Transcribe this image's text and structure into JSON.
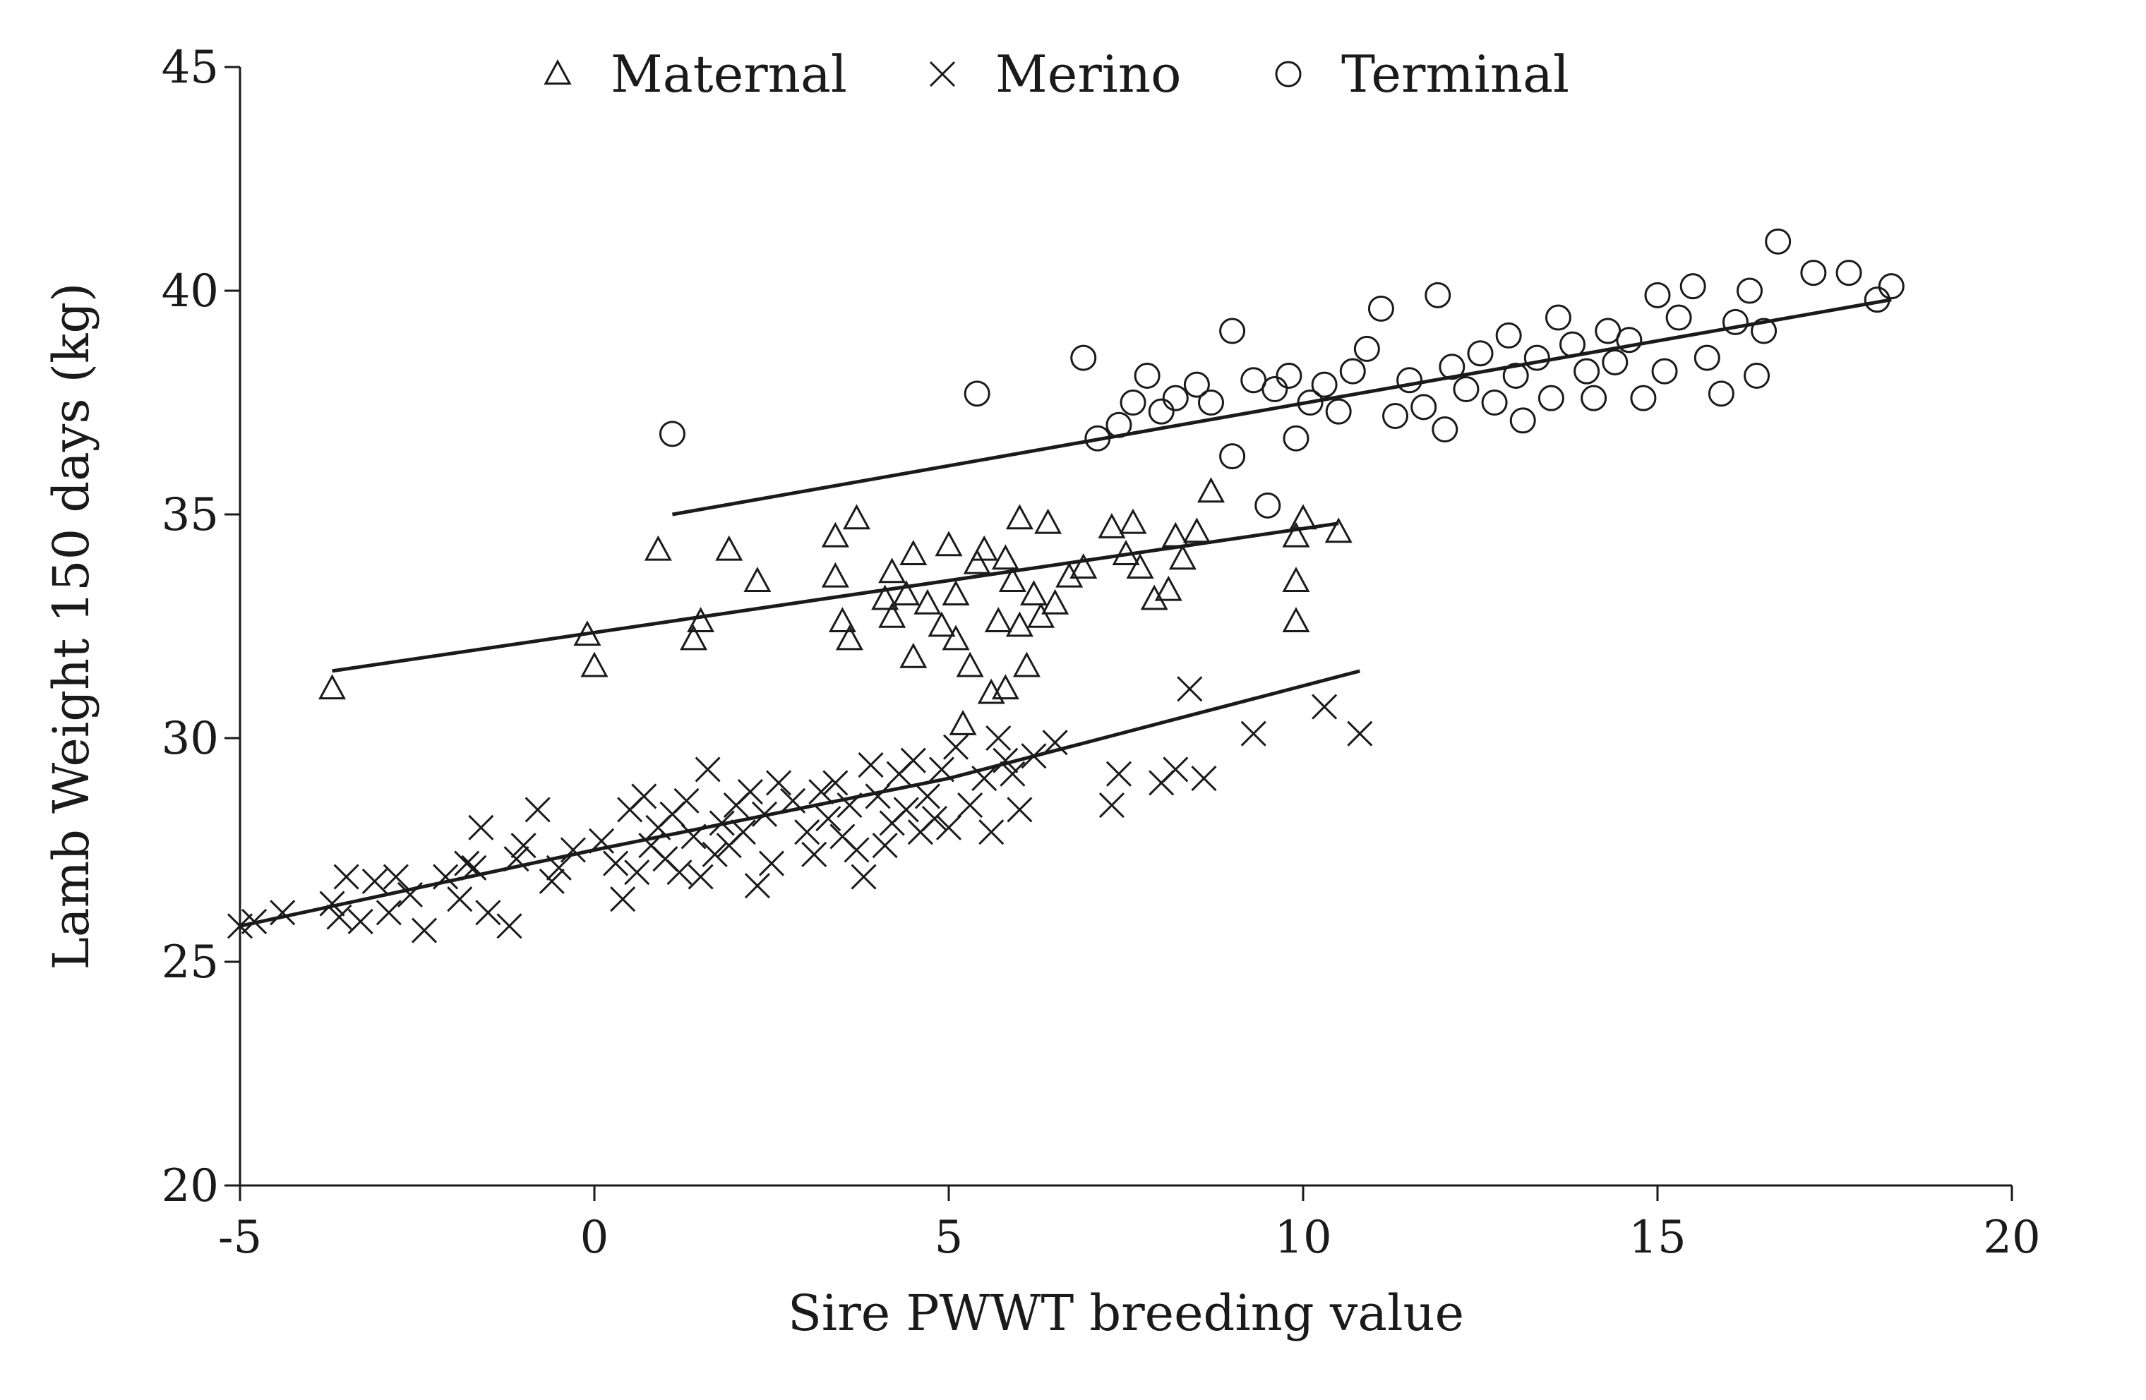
{
  "chart_data": {
    "type": "scatter",
    "xlabel": "Sire PWWT breeding value",
    "ylabel": "Lamb Weight 150 days (kg)",
    "xlim": [
      -5,
      20
    ],
    "ylim": [
      20,
      45
    ],
    "xticks": [
      -5,
      0,
      5,
      10,
      15,
      20
    ],
    "yticks": [
      20,
      25,
      30,
      35,
      40,
      45
    ],
    "grid": false,
    "legend_position": "top",
    "series": [
      {
        "name": "Maternal",
        "marker": "triangle",
        "trend": [
          [
            -3.7,
            31.5
          ],
          [
            10.5,
            34.8
          ]
        ],
        "points": [
          [
            -3.7,
            31.1
          ],
          [
            -0.1,
            32.3
          ],
          [
            0.0,
            31.6
          ],
          [
            0.9,
            34.2
          ],
          [
            1.4,
            32.2
          ],
          [
            1.5,
            32.6
          ],
          [
            1.9,
            34.2
          ],
          [
            2.3,
            33.5
          ],
          [
            3.4,
            34.5
          ],
          [
            3.4,
            33.6
          ],
          [
            3.5,
            32.6
          ],
          [
            3.6,
            32.2
          ],
          [
            3.7,
            34.9
          ],
          [
            4.1,
            33.1
          ],
          [
            4.2,
            33.7
          ],
          [
            4.2,
            32.7
          ],
          [
            4.4,
            33.2
          ],
          [
            4.5,
            34.1
          ],
          [
            4.5,
            31.8
          ],
          [
            4.7,
            33.0
          ],
          [
            4.9,
            32.5
          ],
          [
            5.0,
            34.3
          ],
          [
            5.1,
            33.2
          ],
          [
            5.1,
            32.2
          ],
          [
            5.2,
            30.3
          ],
          [
            5.3,
            31.6
          ],
          [
            5.4,
            33.9
          ],
          [
            5.5,
            34.2
          ],
          [
            5.6,
            31.0
          ],
          [
            5.7,
            32.6
          ],
          [
            5.8,
            34.0
          ],
          [
            5.8,
            31.1
          ],
          [
            5.9,
            33.5
          ],
          [
            6.0,
            32.5
          ],
          [
            6.0,
            34.9
          ],
          [
            6.1,
            31.6
          ],
          [
            6.2,
            33.2
          ],
          [
            6.3,
            32.7
          ],
          [
            6.4,
            34.8
          ],
          [
            6.5,
            33.0
          ],
          [
            6.7,
            33.6
          ],
          [
            6.9,
            33.8
          ],
          [
            7.3,
            34.7
          ],
          [
            7.5,
            34.1
          ],
          [
            7.6,
            34.8
          ],
          [
            7.7,
            33.8
          ],
          [
            7.9,
            33.1
          ],
          [
            8.1,
            33.3
          ],
          [
            8.2,
            34.5
          ],
          [
            8.3,
            34.0
          ],
          [
            8.5,
            34.6
          ],
          [
            8.7,
            35.5
          ],
          [
            9.9,
            32.6
          ],
          [
            9.9,
            33.5
          ],
          [
            9.9,
            34.5
          ],
          [
            10.0,
            34.9
          ],
          [
            10.5,
            34.6
          ]
        ]
      },
      {
        "name": "Merino",
        "marker": "cross",
        "trend": [
          [
            -5.0,
            25.8
          ],
          [
            0.0,
            27.5
          ],
          [
            5.0,
            29.1
          ],
          [
            10.8,
            31.5
          ]
        ],
        "points": [
          [
            -5.0,
            25.8
          ],
          [
            -4.8,
            25.9
          ],
          [
            -4.4,
            26.1
          ],
          [
            -3.7,
            26.3
          ],
          [
            -3.6,
            26.0
          ],
          [
            -3.5,
            26.9
          ],
          [
            -3.3,
            25.9
          ],
          [
            -3.1,
            26.8
          ],
          [
            -2.9,
            26.1
          ],
          [
            -2.8,
            26.9
          ],
          [
            -2.6,
            26.5
          ],
          [
            -2.4,
            25.7
          ],
          [
            -2.1,
            26.9
          ],
          [
            -1.9,
            26.4
          ],
          [
            -1.8,
            27.2
          ],
          [
            -1.7,
            27.1
          ],
          [
            -1.6,
            28.0
          ],
          [
            -1.5,
            26.1
          ],
          [
            -1.2,
            25.8
          ],
          [
            -1.1,
            27.3
          ],
          [
            -1.0,
            27.6
          ],
          [
            -0.8,
            28.4
          ],
          [
            -0.6,
            26.8
          ],
          [
            -0.5,
            27.1
          ],
          [
            -0.3,
            27.5
          ],
          [
            0.1,
            27.7
          ],
          [
            0.3,
            27.2
          ],
          [
            0.4,
            26.4
          ],
          [
            0.5,
            28.4
          ],
          [
            0.6,
            27.0
          ],
          [
            0.7,
            28.7
          ],
          [
            0.8,
            27.6
          ],
          [
            0.9,
            28.0
          ],
          [
            1.0,
            27.3
          ],
          [
            1.1,
            28.3
          ],
          [
            1.2,
            27.0
          ],
          [
            1.3,
            28.6
          ],
          [
            1.4,
            27.8
          ],
          [
            1.5,
            26.9
          ],
          [
            1.6,
            29.3
          ],
          [
            1.7,
            27.4
          ],
          [
            1.8,
            28.1
          ],
          [
            1.9,
            27.6
          ],
          [
            2.0,
            28.5
          ],
          [
            2.1,
            27.9
          ],
          [
            2.2,
            28.8
          ],
          [
            2.3,
            26.7
          ],
          [
            2.4,
            28.3
          ],
          [
            2.5,
            27.2
          ],
          [
            2.6,
            29.0
          ],
          [
            2.8,
            28.6
          ],
          [
            3.0,
            27.9
          ],
          [
            3.1,
            27.4
          ],
          [
            3.2,
            28.8
          ],
          [
            3.3,
            28.2
          ],
          [
            3.4,
            29.0
          ],
          [
            3.5,
            27.8
          ],
          [
            3.6,
            28.5
          ],
          [
            3.7,
            27.5
          ],
          [
            3.8,
            26.9
          ],
          [
            3.9,
            29.4
          ],
          [
            4.0,
            28.7
          ],
          [
            4.1,
            27.6
          ],
          [
            4.2,
            28.1
          ],
          [
            4.3,
            29.2
          ],
          [
            4.4,
            28.4
          ],
          [
            4.5,
            29.5
          ],
          [
            4.6,
            27.9
          ],
          [
            4.7,
            28.7
          ],
          [
            4.8,
            28.2
          ],
          [
            4.9,
            29.3
          ],
          [
            5.0,
            28.0
          ],
          [
            5.1,
            29.8
          ],
          [
            5.3,
            28.5
          ],
          [
            5.5,
            29.1
          ],
          [
            5.6,
            27.9
          ],
          [
            5.7,
            30.0
          ],
          [
            5.8,
            29.5
          ],
          [
            5.9,
            29.2
          ],
          [
            6.0,
            28.4
          ],
          [
            6.2,
            29.6
          ],
          [
            6.5,
            29.9
          ],
          [
            7.3,
            28.5
          ],
          [
            7.4,
            29.2
          ],
          [
            8.0,
            29.0
          ],
          [
            8.2,
            29.3
          ],
          [
            8.4,
            31.1
          ],
          [
            8.6,
            29.1
          ],
          [
            9.3,
            30.1
          ],
          [
            10.3,
            30.7
          ],
          [
            10.8,
            30.1
          ]
        ]
      },
      {
        "name": "Terminal",
        "marker": "circle",
        "trend": [
          [
            1.1,
            35.0
          ],
          [
            18.3,
            39.8
          ]
        ],
        "points": [
          [
            1.1,
            36.8
          ],
          [
            5.4,
            37.7
          ],
          [
            6.9,
            38.5
          ],
          [
            7.1,
            36.7
          ],
          [
            7.4,
            37.0
          ],
          [
            7.6,
            37.5
          ],
          [
            7.8,
            38.1
          ],
          [
            8.0,
            37.3
          ],
          [
            8.2,
            37.6
          ],
          [
            8.5,
            37.9
          ],
          [
            8.7,
            37.5
          ],
          [
            9.0,
            36.3
          ],
          [
            9.0,
            39.1
          ],
          [
            9.3,
            38.0
          ],
          [
            9.5,
            35.2
          ],
          [
            9.6,
            37.8
          ],
          [
            9.8,
            38.1
          ],
          [
            9.9,
            36.7
          ],
          [
            10.1,
            37.5
          ],
          [
            10.3,
            37.9
          ],
          [
            10.5,
            37.3
          ],
          [
            10.7,
            38.2
          ],
          [
            10.9,
            38.7
          ],
          [
            11.1,
            39.6
          ],
          [
            11.3,
            37.2
          ],
          [
            11.5,
            38.0
          ],
          [
            11.7,
            37.4
          ],
          [
            11.9,
            39.9
          ],
          [
            12.0,
            36.9
          ],
          [
            12.1,
            38.3
          ],
          [
            12.3,
            37.8
          ],
          [
            12.5,
            38.6
          ],
          [
            12.7,
            37.5
          ],
          [
            12.9,
            39.0
          ],
          [
            13.0,
            38.1
          ],
          [
            13.1,
            37.1
          ],
          [
            13.3,
            38.5
          ],
          [
            13.5,
            37.6
          ],
          [
            13.6,
            39.4
          ],
          [
            13.8,
            38.8
          ],
          [
            14.0,
            38.2
          ],
          [
            14.1,
            37.6
          ],
          [
            14.3,
            39.1
          ],
          [
            14.4,
            38.4
          ],
          [
            14.6,
            38.9
          ],
          [
            14.8,
            37.6
          ],
          [
            15.0,
            39.9
          ],
          [
            15.1,
            38.2
          ],
          [
            15.3,
            39.4
          ],
          [
            15.5,
            40.1
          ],
          [
            15.7,
            38.5
          ],
          [
            15.9,
            37.7
          ],
          [
            16.1,
            39.3
          ],
          [
            16.3,
            40.0
          ],
          [
            16.4,
            38.1
          ],
          [
            16.5,
            39.1
          ],
          [
            16.7,
            41.1
          ],
          [
            17.2,
            40.4
          ],
          [
            17.7,
            40.4
          ],
          [
            18.1,
            39.8
          ],
          [
            18.3,
            40.1
          ]
        ]
      }
    ]
  }
}
